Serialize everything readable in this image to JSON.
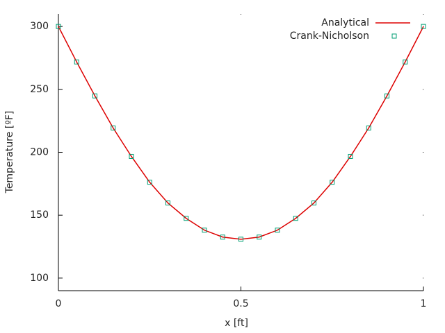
{
  "chart_data": {
    "type": "line",
    "xlabel": "x [ft]",
    "ylabel": "Temperature [ºF]",
    "x": [
      0,
      0.05,
      0.1,
      0.15,
      0.2,
      0.25,
      0.3,
      0.35,
      0.4,
      0.45,
      0.5,
      0.55,
      0.6,
      0.65,
      0.7,
      0.75,
      0.8,
      0.85,
      0.9,
      0.95,
      1
    ],
    "series": [
      {
        "name": "Analytical",
        "color": "#dd0000",
        "style": "line",
        "values": [
          300,
          271.8,
          244.8,
          219.3,
          196.7,
          176.2,
          159.7,
          147.5,
          138.1,
          132.6,
          130.9,
          132.6,
          138.1,
          147.5,
          159.7,
          176.2,
          196.7,
          219.3,
          244.8,
          271.8,
          300
        ]
      },
      {
        "name": "Crank-Nicholson",
        "color": "#009e73",
        "style": "points",
        "values": [
          300,
          271.8,
          244.8,
          219.3,
          196.7,
          176.2,
          159.7,
          147.5,
          138.1,
          132.6,
          130.9,
          132.6,
          138.1,
          147.5,
          159.7,
          176.2,
          196.7,
          219.3,
          244.8,
          271.8,
          300
        ]
      }
    ],
    "xlim": [
      0,
      1
    ],
    "xticks": [
      0,
      0.5,
      1
    ],
    "ylim": [
      90,
      310
    ],
    "yticks": [
      100,
      150,
      200,
      250,
      300
    ],
    "legend": "top-right"
  }
}
